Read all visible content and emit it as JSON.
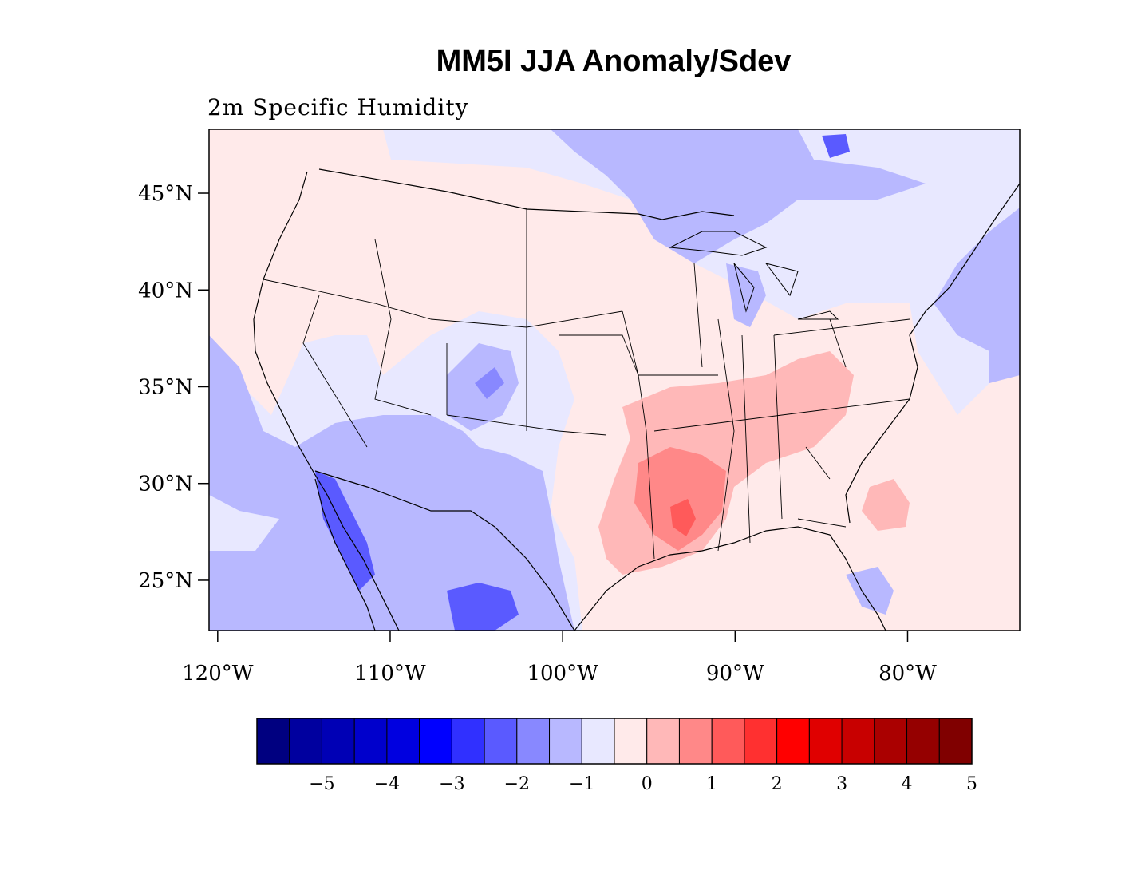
{
  "title": "MM5I JJA Anomaly/Sdev",
  "subtitle": "2m Specific Humidity",
  "map": {
    "lat_range": [
      22.4,
      48.3
    ],
    "lon_range": [
      -120.5,
      -73.5
    ],
    "lat_ticks": [
      {
        "value": 45,
        "label": "45°N"
      },
      {
        "value": 40,
        "label": "40°N"
      },
      {
        "value": 35,
        "label": "35°N"
      },
      {
        "value": 30,
        "label": "30°N"
      },
      {
        "value": 25,
        "label": "25°N"
      }
    ],
    "lon_ticks": [
      {
        "value": -120,
        "label": "120°W"
      },
      {
        "value": -110,
        "label": "110°W"
      },
      {
        "value": -100,
        "label": "100°W"
      },
      {
        "value": -90,
        "label": "90°W"
      },
      {
        "value": -80,
        "label": "80°W"
      }
    ]
  },
  "colorbar": {
    "colors": [
      "#000080",
      "#00009f",
      "#0000b5",
      "#0000cc",
      "#0000e0",
      "#0000ff",
      "#3030ff",
      "#5a5aff",
      "#8888ff",
      "#b8b8ff",
      "#e8e8ff",
      "#ffeaea",
      "#ffb8b8",
      "#ff8888",
      "#ff5a5a",
      "#ff3030",
      "#ff0000",
      "#e00000",
      "#c80000",
      "#aa0000",
      "#950000",
      "#800000"
    ],
    "labels": [
      "−5",
      "−4",
      "−3",
      "−2",
      "−1",
      "0",
      "1",
      "2",
      "3",
      "4",
      "5"
    ]
  }
}
